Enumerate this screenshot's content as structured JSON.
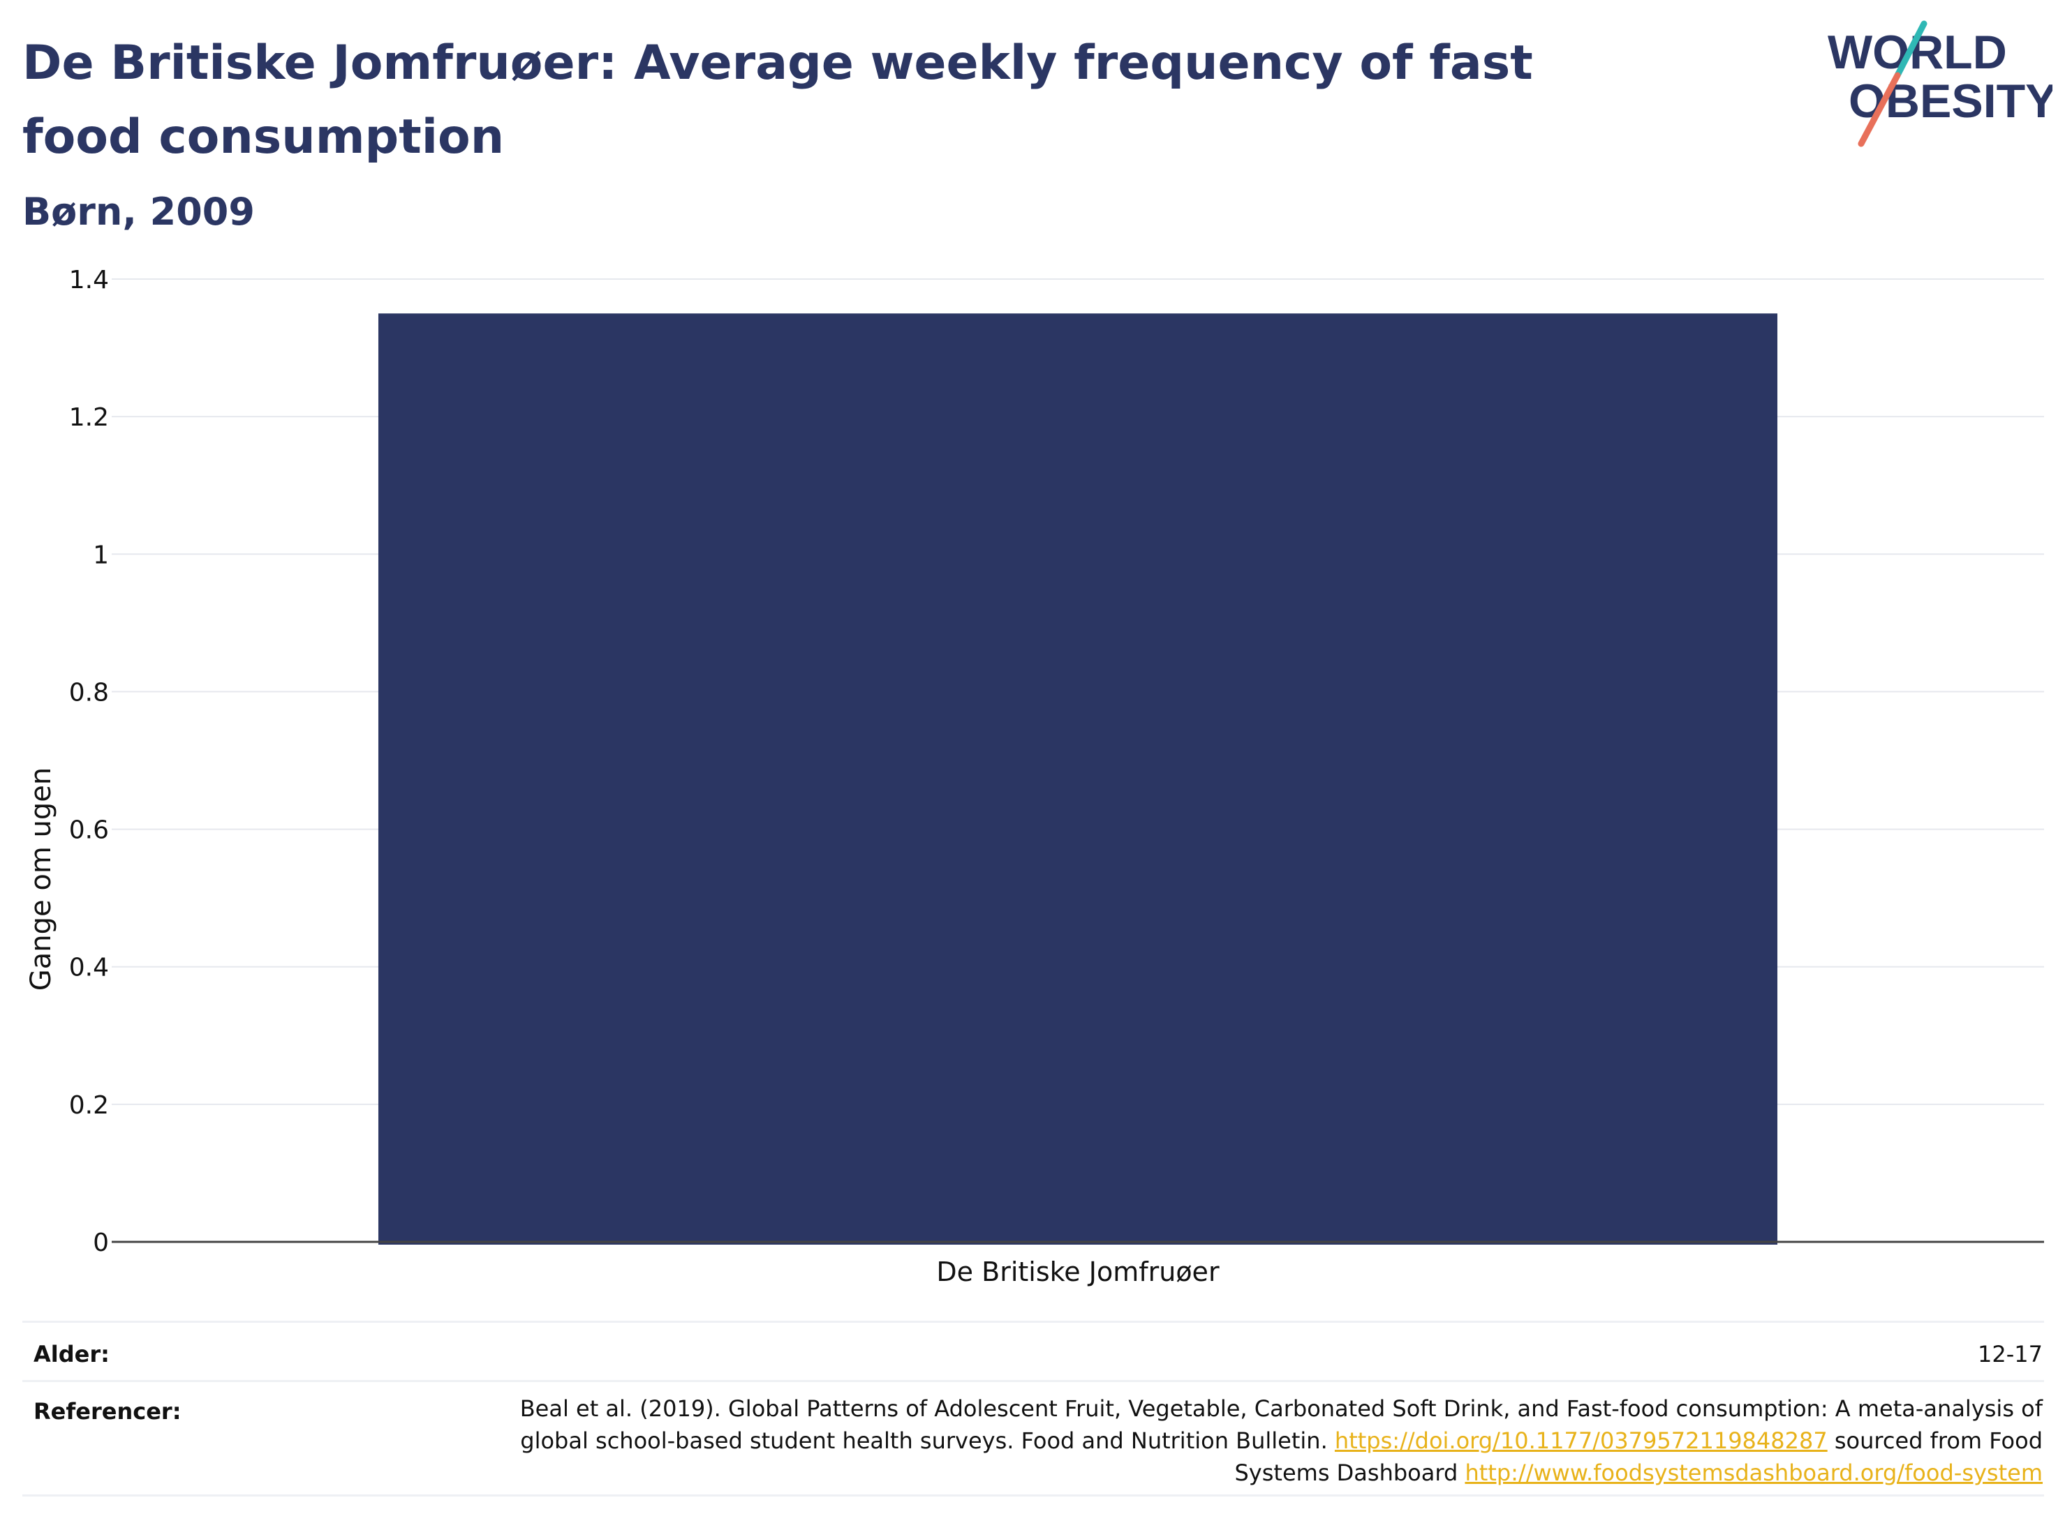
{
  "header": {
    "title": "De Britiske Jomfruøer: Average weekly frequency of fast food consumption",
    "subtitle": "Børn, 2009",
    "logo_text_line1": "WORLD",
    "logo_text_line2": "OBESITY"
  },
  "chart_data": {
    "type": "bar",
    "categories": [
      "De Britiske Jomfruøer"
    ],
    "values": [
      1.35
    ],
    "ylabel": "Gange om ugen",
    "xlabel": "",
    "ylim": [
      0,
      1.4
    ],
    "yticks": [
      0,
      0.2,
      0.4,
      0.6,
      0.8,
      1,
      1.2,
      1.4
    ],
    "ytick_labels": [
      "0",
      "0.2",
      "0.4",
      "0.6",
      "0.8",
      "1",
      "1.2",
      "1.4"
    ],
    "grid": true,
    "bar_color": "#2b3663"
  },
  "footer": {
    "age_label": "Alder:",
    "age_value": "12-17",
    "references_label": "Referencer:",
    "reference_text_1": "Beal et al. (2019). Global Patterns of Adolescent Fruit, Vegetable, Carbonated Soft Drink, and Fast-food consumption: A meta-analysis of global school-based student health surveys. Food and Nutrition Bulletin. ",
    "reference_link_1": "https://doi.org/10.1177/0379572119848287",
    "reference_text_2": " sourced from Food Systems Dashboard ",
    "reference_link_2": "http://www.foodsystemsdashboard.org/food-system"
  },
  "colors": {
    "navy": "#2b3663",
    "teal": "#2fb8b5",
    "coral": "#e8705a",
    "link": "#e8b21a",
    "grid": "#e6e8ee"
  }
}
